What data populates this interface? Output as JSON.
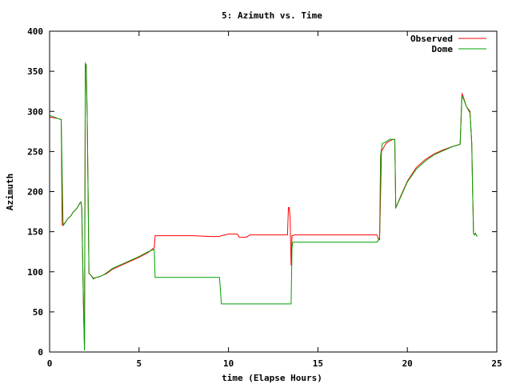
{
  "chart_data": {
    "type": "line",
    "title": "5: Azimuth vs. Time",
    "xlabel": "time (Elapse Hours)",
    "ylabel": "Azimuth",
    "xlim": [
      0,
      25
    ],
    "ylim": [
      0,
      400
    ],
    "xticks": [
      "0",
      "5",
      "10",
      "15",
      "20",
      "25"
    ],
    "yticks": [
      "0",
      "50",
      "100",
      "150",
      "200",
      "250",
      "300",
      "350",
      "400"
    ],
    "grid": false,
    "legend_position": "top-right",
    "series": [
      {
        "name": "Observed",
        "color": "#ff0000",
        "x": [
          0,
          0.5,
          0.6,
          0.65,
          0.7,
          0.72,
          0.9,
          1.0,
          1.2,
          1.3,
          1.4,
          1.55,
          1.7,
          1.75,
          1.8,
          1.9,
          1.95,
          2.0,
          2.05,
          2.1,
          2.15,
          2.2,
          2.25,
          2.3,
          2.45,
          2.6,
          2.8,
          3.0,
          3.2,
          3.5,
          4.0,
          4.5,
          5.0,
          5.5,
          5.85,
          5.9,
          6.0,
          7.0,
          8.0,
          9.0,
          9.5,
          9.6,
          10.0,
          10.5,
          10.6,
          11.0,
          11.2,
          12.0,
          13.0,
          13.3,
          13.35,
          13.4,
          13.45,
          13.5,
          13.55,
          13.6,
          13.7,
          14.0,
          15.0,
          16.0,
          17.0,
          18.0,
          18.3,
          18.4,
          18.45,
          18.5,
          18.55,
          18.6,
          18.8,
          19.0,
          19.2,
          19.3,
          19.35,
          19.4,
          19.6,
          20.0,
          20.5,
          21.0,
          21.5,
          22.0,
          22.5,
          22.95,
          23.0,
          23.05,
          23.1,
          23.3,
          23.5,
          23.6,
          23.65,
          23.7,
          23.75,
          23.8,
          23.85,
          23.9
        ],
        "y": [
          293,
          291,
          290,
          290,
          160,
          158,
          162,
          166,
          170,
          174,
          176,
          180,
          186,
          187,
          180,
          50,
          5,
          358,
          357,
          290,
          200,
          98,
          97,
          96,
          92,
          93,
          94,
          96,
          98,
          103,
          108,
          113,
          118,
          124,
          130,
          145,
          145,
          145,
          145,
          144,
          144,
          145,
          147,
          147,
          143,
          143,
          146,
          146,
          146,
          146,
          180,
          180,
          165,
          108,
          145,
          145,
          146,
          146,
          146,
          146,
          146,
          146,
          146,
          140,
          140,
          195,
          250,
          252,
          260,
          263,
          265,
          265,
          180,
          182,
          193,
          213,
          230,
          240,
          247,
          252,
          256,
          259,
          290,
          322,
          320,
          306,
          300,
          260,
          200,
          148,
          146,
          148,
          146,
          144
        ]
      },
      {
        "name": "Dome",
        "color": "#00a000",
        "x": [
          0,
          0.5,
          0.6,
          0.65,
          0.75,
          0.77,
          0.9,
          1.0,
          1.2,
          1.3,
          1.4,
          1.55,
          1.7,
          1.75,
          1.8,
          1.9,
          1.95,
          2.0,
          2.05,
          2.1,
          2.15,
          2.2,
          2.25,
          2.3,
          2.45,
          2.6,
          2.8,
          3.0,
          3.2,
          3.5,
          4.0,
          4.5,
          5.0,
          5.5,
          5.85,
          5.9,
          6.0,
          7.0,
          8.0,
          9.0,
          9.5,
          9.6,
          10.0,
          11.0,
          12.0,
          13.0,
          13.5,
          13.55,
          13.6,
          13.7,
          14.0,
          15.0,
          16.0,
          17.0,
          18.0,
          18.3,
          18.4,
          18.45,
          18.5,
          18.6,
          18.8,
          19.0,
          19.2,
          19.3,
          19.35,
          19.4,
          19.6,
          20.0,
          20.5,
          21.0,
          21.5,
          22.0,
          22.5,
          22.95,
          23.0,
          23.05,
          23.1,
          23.3,
          23.5,
          23.6,
          23.65,
          23.7,
          23.75,
          23.8,
          23.85,
          23.9
        ],
        "y": [
          295,
          291,
          290,
          290,
          162,
          158,
          162,
          166,
          170,
          174,
          176,
          180,
          186,
          187,
          180,
          50,
          2,
          360,
          358,
          292,
          200,
          98,
          97,
          96,
          91,
          93,
          94,
          96,
          99,
          104,
          109,
          114,
          119,
          125,
          128,
          93,
          93,
          93,
          93,
          93,
          93,
          60,
          60,
          60,
          60,
          60,
          60,
          130,
          137,
          137,
          137,
          137,
          137,
          137,
          137,
          137,
          140,
          143,
          245,
          260,
          262,
          265,
          265,
          265,
          180,
          182,
          192,
          212,
          228,
          238,
          246,
          251,
          256,
          259,
          290,
          318,
          318,
          306,
          298,
          260,
          200,
          148,
          146,
          148,
          146,
          144
        ]
      }
    ]
  }
}
